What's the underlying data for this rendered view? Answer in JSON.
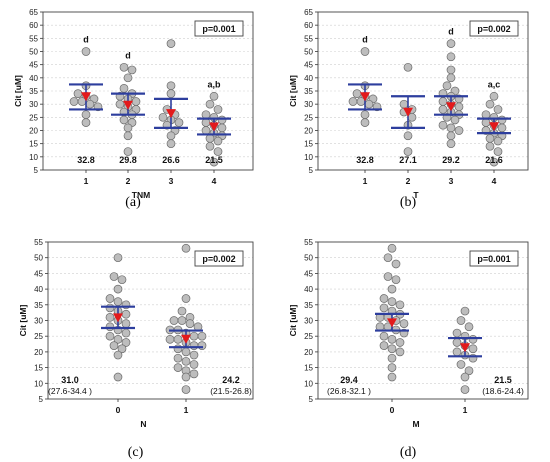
{
  "colors": {
    "point_fill": "#bdbdbd",
    "point_stroke": "#6b6b6b",
    "bar": "#2d3e9e",
    "mean": "#e31a1c",
    "grid": "#cfcfcf"
  },
  "chart_data": [
    {
      "type": "scatter",
      "panel_label": "(a)",
      "xlabel": "TNM",
      "ylabel": "Cit [uM]",
      "ylim": [
        5,
        65
      ],
      "yticks": [
        5,
        10,
        15,
        20,
        25,
        30,
        35,
        40,
        45,
        50,
        55,
        60,
        65
      ],
      "grid": true,
      "p_value": "p=0.001",
      "groups": [
        {
          "category": "1",
          "points": [
            50,
            37,
            34,
            33,
            32,
            31,
            31,
            30,
            29,
            26,
            23
          ],
          "mean": 33,
          "ci": [
            28,
            37.5
          ],
          "median_label": "32.8",
          "annotation": "d"
        },
        {
          "category": "2",
          "points": [
            44,
            43,
            40,
            36,
            34,
            33,
            32,
            31,
            30,
            29,
            28,
            27,
            26,
            24,
            23,
            21,
            18,
            12
          ],
          "mean": 29.8,
          "ci": [
            26,
            34
          ],
          "median_label": "29.8",
          "annotation": "d"
        },
        {
          "category": "3",
          "points": [
            53,
            37,
            34,
            28,
            26,
            25,
            24,
            23,
            22,
            20,
            18,
            15
          ],
          "mean": 26.6,
          "ci": [
            21,
            32
          ],
          "median_label": "26.6",
          "annotation": ""
        },
        {
          "category": "4",
          "points": [
            33,
            30,
            28,
            26,
            25,
            24,
            23,
            22,
            21,
            20,
            19,
            18,
            17,
            16,
            14,
            12,
            8
          ],
          "mean": 21.5,
          "ci": [
            18.5,
            24.5
          ],
          "median_label": "21.5",
          "annotation": "a,b"
        }
      ]
    },
    {
      "type": "scatter",
      "panel_label": "(b)",
      "xlabel": "T",
      "ylabel": "Cit [uM]",
      "ylim": [
        5,
        65
      ],
      "yticks": [
        5,
        10,
        15,
        20,
        25,
        30,
        35,
        40,
        45,
        50,
        55,
        60,
        65
      ],
      "grid": true,
      "p_value": "p=0.002",
      "groups": [
        {
          "category": "1",
          "points": [
            50,
            37,
            34,
            33,
            32,
            31,
            31,
            30,
            29,
            26,
            23
          ],
          "mean": 33,
          "ci": [
            28,
            37.5
          ],
          "median_label": "32.8",
          "annotation": "d"
        },
        {
          "category": "2",
          "points": [
            44,
            30,
            28,
            27,
            25,
            22,
            18,
            12
          ],
          "mean": 27.1,
          "ci": [
            21,
            33
          ],
          "median_label": "27.1",
          "annotation": ""
        },
        {
          "category": "3",
          "points": [
            53,
            48,
            43,
            40,
            37,
            35,
            34,
            33,
            32,
            31,
            30,
            29,
            28,
            27,
            26,
            25,
            24,
            22,
            21,
            20,
            18,
            15
          ],
          "mean": 29.2,
          "ci": [
            26,
            33
          ],
          "median_label": "29.2",
          "annotation": "d"
        },
        {
          "category": "4",
          "points": [
            33,
            30,
            28,
            26,
            25,
            24,
            23,
            22,
            21,
            20,
            19,
            18,
            17,
            16,
            14,
            12,
            8
          ],
          "mean": 21.6,
          "ci": [
            19,
            24.5
          ],
          "median_label": "21.6",
          "annotation": "a,c"
        }
      ]
    },
    {
      "type": "scatter",
      "panel_label": "(c)",
      "xlabel": "N",
      "ylabel": "Cit [uM]",
      "ylim": [
        5,
        55
      ],
      "yticks": [
        5,
        10,
        15,
        20,
        25,
        30,
        35,
        40,
        45,
        50,
        55
      ],
      "grid": true,
      "p_value": "p=0.002",
      "groups": [
        {
          "category": "0",
          "points": [
            50,
            44,
            43,
            40,
            37,
            36,
            35,
            34,
            33,
            32,
            31,
            30,
            29,
            28,
            27,
            26,
            25,
            24,
            23,
            22,
            21,
            19,
            12
          ],
          "mean": 31,
          "ci": [
            27.6,
            34.4
          ],
          "median_label": "31.0",
          "ci_label": "(27.6-34.4 )",
          "annotation": ""
        },
        {
          "category": "1",
          "points": [
            53,
            37,
            33,
            31,
            30,
            30,
            29,
            28,
            27,
            27,
            26,
            25,
            25,
            24,
            24,
            23,
            22,
            22,
            21,
            20,
            19,
            18,
            17,
            16,
            15,
            14,
            13,
            12,
            8
          ],
          "mean": 24.2,
          "ci": [
            21.5,
            26.8
          ],
          "median_label": "24.2",
          "ci_label": "(21.5-26.8)",
          "annotation": ""
        }
      ]
    },
    {
      "type": "scatter",
      "panel_label": "(d)",
      "xlabel": "M",
      "ylabel": "Cit [uM]",
      "ylim": [
        5,
        55
      ],
      "yticks": [
        5,
        10,
        15,
        20,
        25,
        30,
        35,
        40,
        45,
        50,
        55
      ],
      "grid": true,
      "p_value": "p=0.001",
      "groups": [
        {
          "category": "0",
          "points": [
            53,
            50,
            48,
            44,
            43,
            40,
            37,
            36,
            35,
            34,
            33,
            32,
            31,
            31,
            30,
            29,
            28,
            28,
            27,
            26,
            25,
            24,
            23,
            22,
            21,
            20,
            18,
            15,
            12
          ],
          "mean": 29.4,
          "ci": [
            26.8,
            32.1
          ],
          "median_label": "29.4",
          "ci_label": "(26.8-32.1 )",
          "annotation": ""
        },
        {
          "category": "1",
          "points": [
            33,
            30,
            28,
            26,
            25,
            24,
            23,
            22,
            21,
            20,
            19,
            18,
            16,
            14,
            12,
            8
          ],
          "mean": 21.5,
          "ci": [
            18.6,
            24.4
          ],
          "median_label": "21.5",
          "ci_label": "(18.6-24.4)",
          "annotation": ""
        }
      ]
    }
  ]
}
